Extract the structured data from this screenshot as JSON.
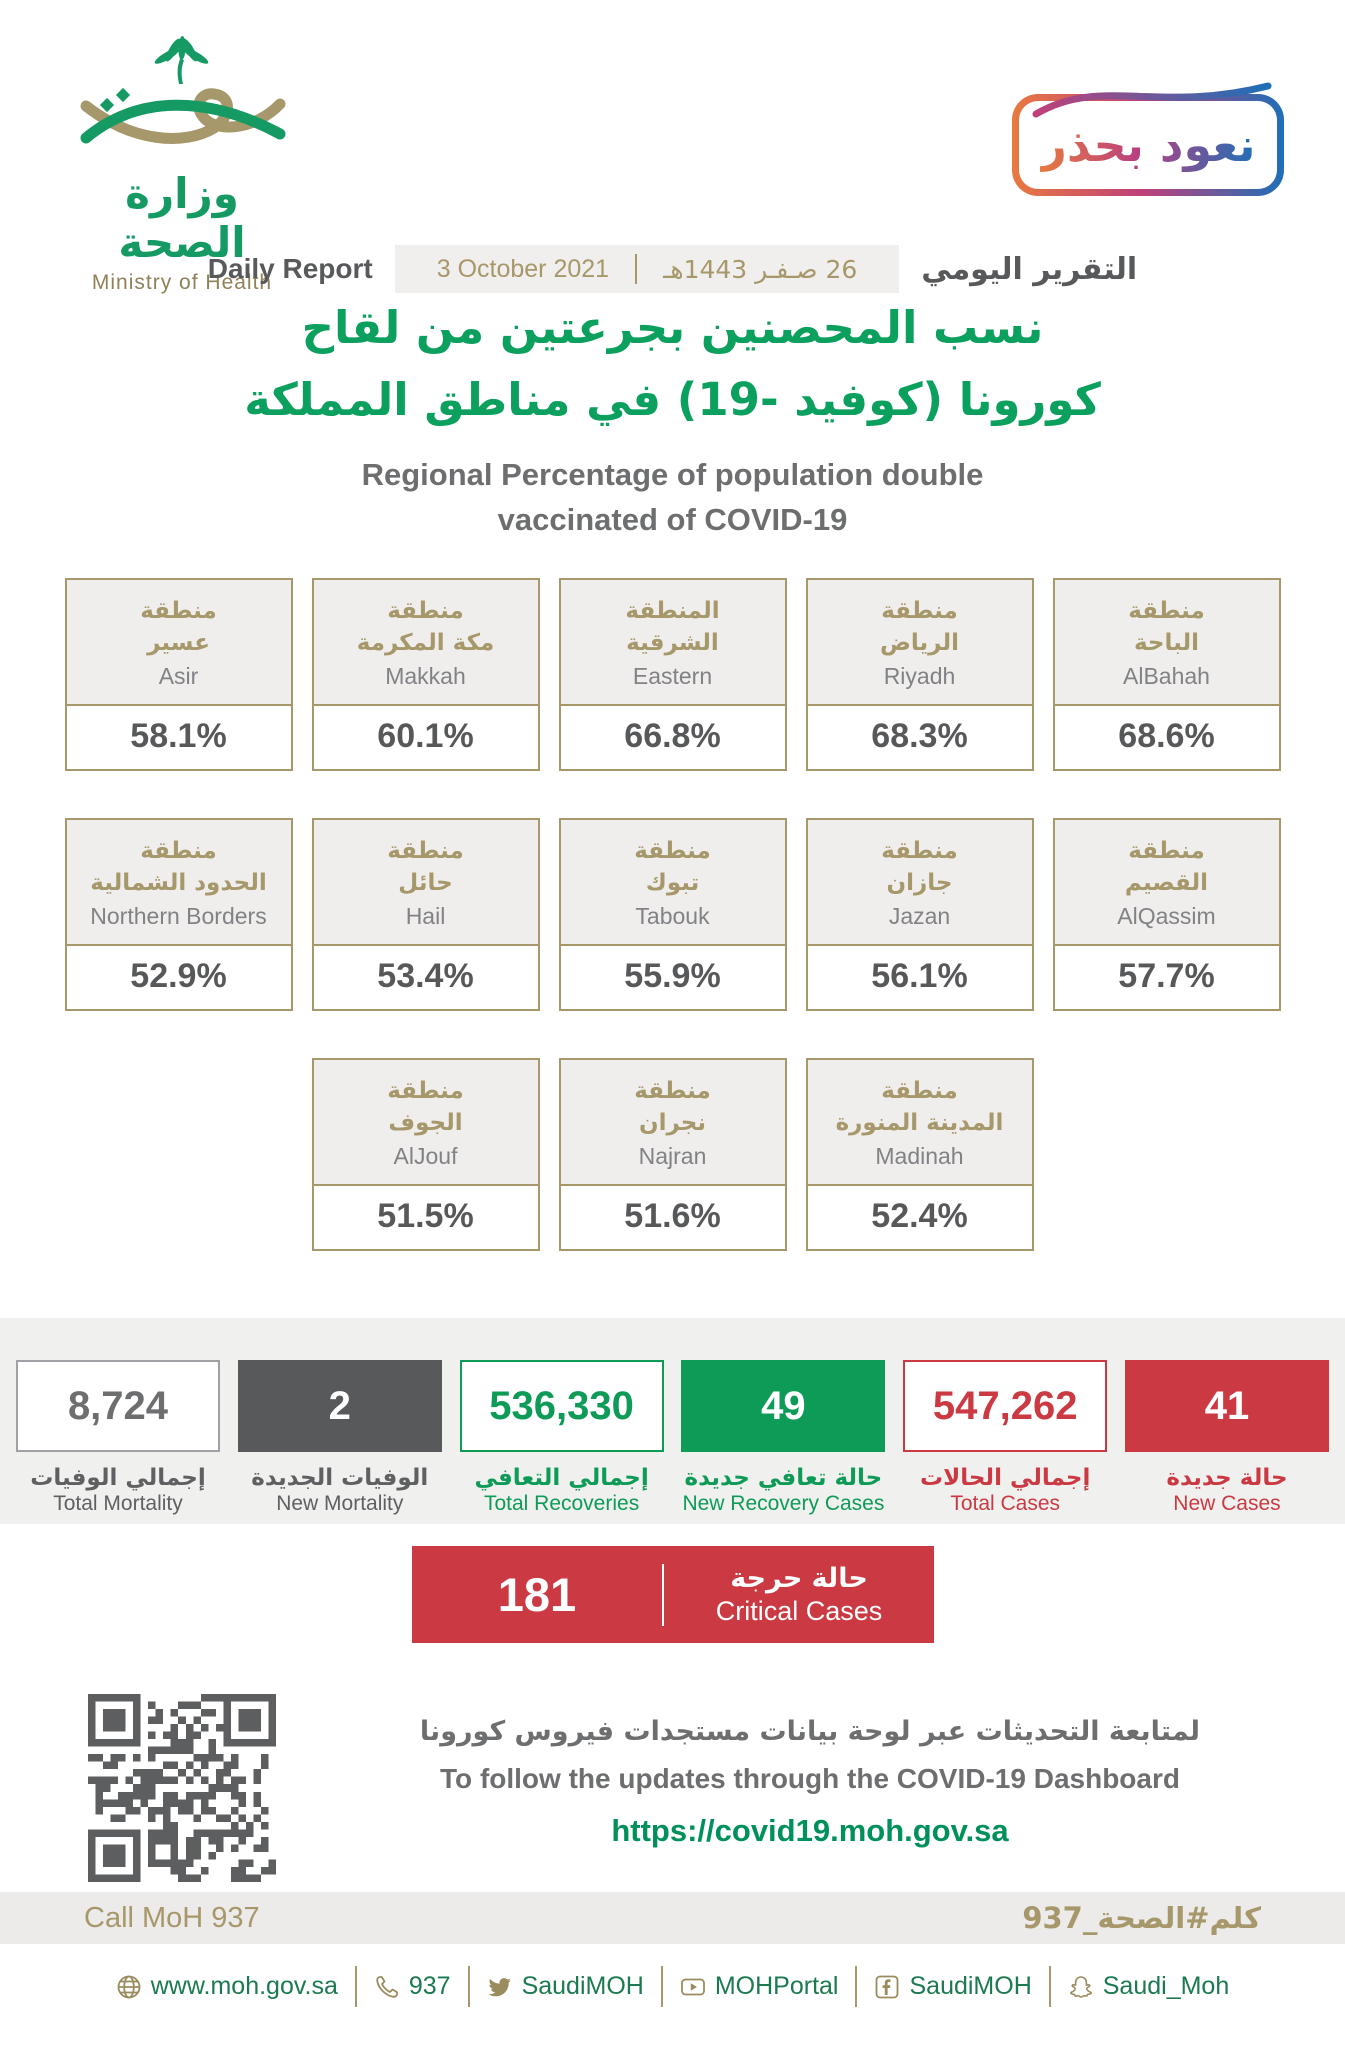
{
  "colors": {
    "brand_gold": "#a6986a",
    "brand_green": "#0ca05e",
    "status_red": "#cb3a43",
    "status_green": "#0e9b57",
    "dark_gray": "#58595b",
    "badge_gradient": [
      "#e8793f",
      "#c0407a",
      "#1e6fb8"
    ]
  },
  "logo": {
    "title_ar": "وزارة الصحة",
    "title_en": "Ministry of Health"
  },
  "badge": {
    "label_ar": "نعود بحذر"
  },
  "report_row": {
    "label_en": "Daily Report",
    "date_gregorian": "3 October 2021",
    "date_hijri": "26 صـفـر 1443هـ",
    "label_ar": "التقرير اليومي"
  },
  "title": {
    "ar_line1": "نسب المحصنين بجرعتين من لقاح",
    "ar_line2": "كورونا (كوفيد -19) في مناطق المملكة",
    "en_line1": "Regional Percentage of population double",
    "en_line2": "vaccinated of COVID-19"
  },
  "regions": {
    "row1": [
      {
        "ar_line1": "منطقة",
        "ar_line2": "عسير",
        "en": "Asir",
        "value": "58.1%"
      },
      {
        "ar_line1": "منطقة",
        "ar_line2": "مكة المكرمة",
        "en": "Makkah",
        "value": "60.1%"
      },
      {
        "ar_line1": "المنطقة",
        "ar_line2": "الشرقية",
        "en": "Eastern",
        "value": "66.8%"
      },
      {
        "ar_line1": "منطقة",
        "ar_line2": "الرياض",
        "en": "Riyadh",
        "value": "68.3%"
      },
      {
        "ar_line1": "منطقة",
        "ar_line2": "الباحة",
        "en": "AlBahah",
        "value": "68.6%"
      }
    ],
    "row2": [
      {
        "ar_line1": "منطقة",
        "ar_line2": "الحدود الشمالية",
        "en": "Northern Borders",
        "value": "52.9%"
      },
      {
        "ar_line1": "منطقة",
        "ar_line2": "حائل",
        "en": "Hail",
        "value": "53.4%"
      },
      {
        "ar_line1": "منطقة",
        "ar_line2": "تبوك",
        "en": "Tabouk",
        "value": "55.9%"
      },
      {
        "ar_line1": "منطقة",
        "ar_line2": "جازان",
        "en": "Jazan",
        "value": "56.1%"
      },
      {
        "ar_line1": "منطقة",
        "ar_line2": "القصيم",
        "en": "AlQassim",
        "value": "57.7%"
      }
    ],
    "row3": [
      {
        "ar_line1": "منطقة",
        "ar_line2": "الجوف",
        "en": "AlJouf",
        "value": "51.5%"
      },
      {
        "ar_line1": "منطقة",
        "ar_line2": "نجران",
        "en": "Najran",
        "value": "51.6%"
      },
      {
        "ar_line1": "منطقة",
        "ar_line2": "المدينة المنورة",
        "en": "Madinah",
        "value": "52.4%"
      }
    ]
  },
  "stats": {
    "total_mortality": {
      "value": "8,724",
      "label_ar": "إجمالي الوفيات",
      "label_en": "Total Mortality"
    },
    "new_mortality": {
      "value": "2",
      "label_ar": "الوفيات الجديدة",
      "label_en": "New Mortality"
    },
    "total_recoveries": {
      "value": "536,330",
      "label_ar": "إجمالي التعافي",
      "label_en": "Total Recoveries"
    },
    "new_recoveries": {
      "value": "49",
      "label_ar": "حالة تعافي جديدة",
      "label_en": "New Recovery Cases"
    },
    "total_cases": {
      "value": "547,262",
      "label_ar": "إجمالي الحالات",
      "label_en": "Total Cases"
    },
    "new_cases": {
      "value": "41",
      "label_ar": "حالة جديدة",
      "label_en": "New Cases"
    }
  },
  "critical": {
    "value": "181",
    "label_ar": "حالة حرجة",
    "label_en": "Critical Cases"
  },
  "dashboard": {
    "text_ar": "لمتابعة التحديثات عبر لوحة بيانات مستجدات فيروس كورونا",
    "text_en": "To follow the updates through the COVID-19 Dashboard",
    "url": "https://covid19.moh.gov.sa"
  },
  "footer": {
    "call_en": "Call MoH 937",
    "hashtag_ar": "كلم#الصحة_937",
    "social": [
      {
        "icon": "globe-icon",
        "label": "www.moh.gov.sa"
      },
      {
        "icon": "phone-icon",
        "label": "937"
      },
      {
        "icon": "twitter-icon",
        "label": "SaudiMOH"
      },
      {
        "icon": "youtube-icon",
        "label": "MOHPortal"
      },
      {
        "icon": "facebook-icon",
        "label": "SaudiMOH"
      },
      {
        "icon": "snapchat-icon",
        "label": "Saudi_Moh"
      }
    ]
  }
}
